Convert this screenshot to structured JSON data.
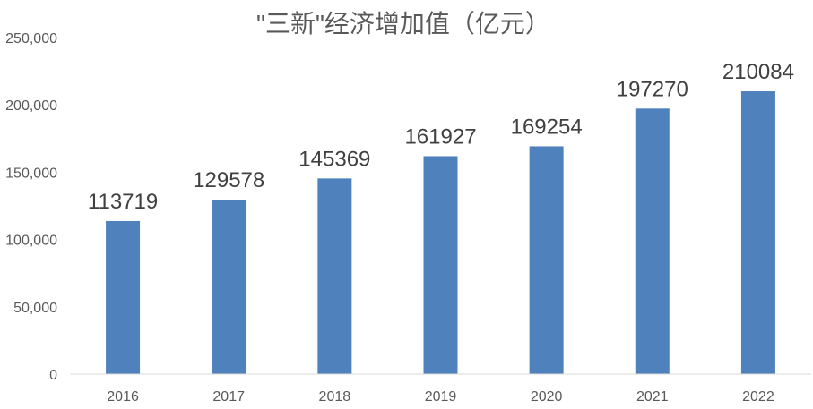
{
  "chart_data": {
    "type": "bar",
    "title": "\"三新\"经济增加值（亿元）",
    "xlabel": "",
    "ylabel": "",
    "categories": [
      "2016",
      "2017",
      "2018",
      "2019",
      "2020",
      "2021",
      "2022"
    ],
    "values": [
      113719,
      129578,
      145369,
      161927,
      169254,
      197270,
      210084
    ],
    "data_labels": [
      "113719",
      "129578",
      "145369",
      "161927",
      "169254",
      "197270",
      "210084"
    ],
    "ylim": [
      0,
      250000
    ],
    "y_ticks": [
      0,
      50000,
      100000,
      150000,
      200000,
      250000
    ],
    "y_tick_labels": [
      "0",
      "50,000",
      "100,000",
      "150,000",
      "200,000",
      "250,000"
    ],
    "grid": false,
    "legend": "none",
    "colors": {
      "bar": "#4f81bd",
      "axis": "#d9d9d9",
      "text": "#595959",
      "label": "#404040"
    }
  }
}
